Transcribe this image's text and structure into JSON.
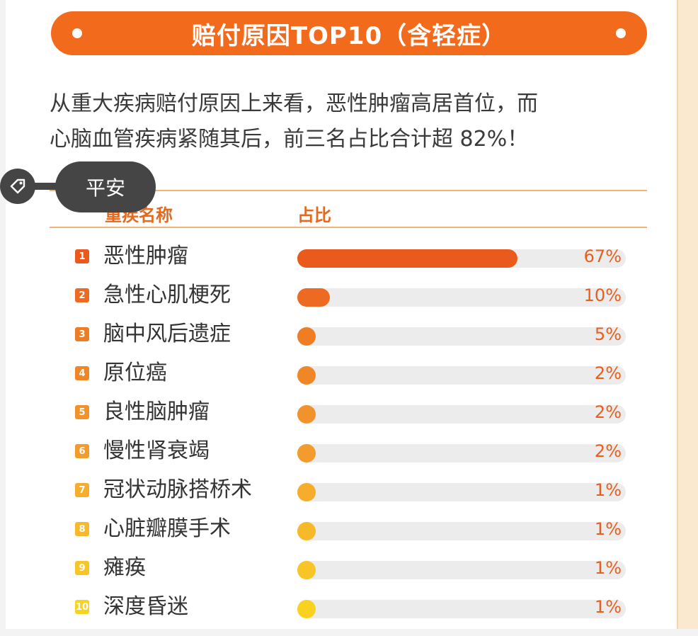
{
  "banner": {
    "title": "赔付原因TOP10（含轻症）"
  },
  "intro": {
    "line1": "从重大疾病赔付原因上来看，恶性肿瘤高居首位，而",
    "line2": "心脑血管疾病紧随其后，前三名占比合计超 82%！"
  },
  "tag": {
    "label": "平安",
    "icon": "tag-icon"
  },
  "table": {
    "col_name": "重疾名称",
    "col_pct": "占比"
  },
  "chart_data": {
    "type": "bar",
    "orientation": "horizontal",
    "categories": [
      "恶性肿瘤",
      "急性心肌梗死",
      "脑中风后遗症",
      "原位癌",
      "良性脑肿瘤",
      "慢性肾衰竭",
      "冠状动脉搭桥术",
      "心脏瓣膜手术",
      "瘫痪",
      "深度昏迷"
    ],
    "values": [
      67,
      10,
      5,
      2,
      2,
      2,
      1,
      1,
      1,
      1
    ],
    "labels": [
      "67%",
      "10%",
      "5%",
      "2%",
      "2%",
      "2%",
      "1%",
      "1%",
      "1%",
      "1%"
    ],
    "ranks": [
      "1",
      "2",
      "3",
      "4",
      "5",
      "6",
      "7",
      "8",
      "9",
      "10"
    ],
    "colors": [
      "#ea5a1c",
      "#ec6a21",
      "#ee7d24",
      "#f08727",
      "#f2922a",
      "#f39b2c",
      "#f6ad2c",
      "#f7b82a",
      "#f8c526",
      "#f8d21f"
    ],
    "xlim": [
      0,
      100
    ]
  }
}
